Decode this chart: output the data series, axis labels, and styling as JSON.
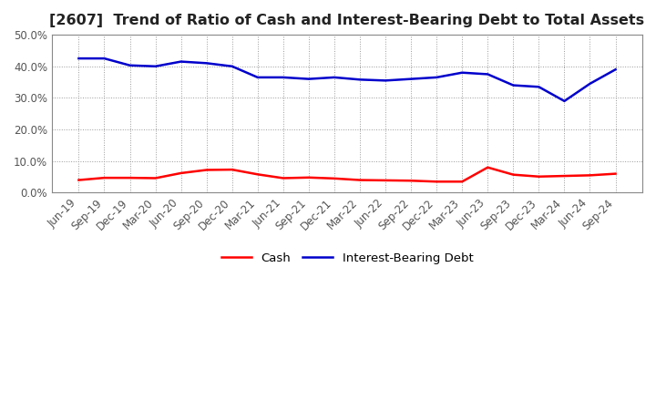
{
  "title": "[2607]  Trend of Ratio of Cash and Interest-Bearing Debt to Total Assets",
  "x_labels": [
    "Jun-19",
    "Sep-19",
    "Dec-19",
    "Mar-20",
    "Jun-20",
    "Sep-20",
    "Dec-20",
    "Mar-21",
    "Jun-21",
    "Sep-21",
    "Dec-21",
    "Mar-22",
    "Jun-22",
    "Sep-22",
    "Dec-22",
    "Mar-23",
    "Jun-23",
    "Sep-23",
    "Dec-23",
    "Mar-24",
    "Jun-24",
    "Sep-24"
  ],
  "cash": [
    4.0,
    4.7,
    4.7,
    4.6,
    6.2,
    7.2,
    7.3,
    5.8,
    4.6,
    4.8,
    4.5,
    4.0,
    3.9,
    3.8,
    3.5,
    3.5,
    8.0,
    5.7,
    5.1,
    5.3,
    5.5,
    6.0
  ],
  "ibd": [
    42.5,
    42.5,
    40.3,
    40.0,
    41.5,
    41.0,
    40.0,
    36.5,
    36.5,
    36.0,
    36.5,
    35.8,
    35.5,
    36.0,
    36.5,
    38.0,
    37.5,
    34.0,
    33.5,
    29.0,
    34.5,
    39.0
  ],
  "cash_color": "#FF0000",
  "ibd_color": "#0000CC",
  "background_color": "#FFFFFF",
  "plot_bg_color": "#FFFFFF",
  "grid_color": "#999999",
  "ylim": [
    0,
    50
  ],
  "yticks": [
    0,
    10,
    20,
    30,
    40,
    50
  ],
  "legend_cash": "Cash",
  "legend_ibd": "Interest-Bearing Debt",
  "title_fontsize": 11.5,
  "tick_fontsize": 8.5,
  "legend_fontsize": 9.5,
  "line_width": 1.8
}
